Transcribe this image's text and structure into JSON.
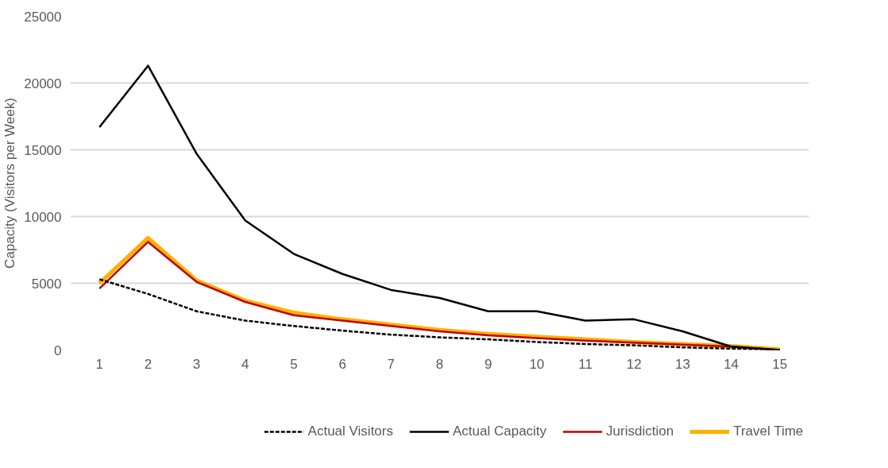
{
  "chart_data": {
    "type": "line",
    "ylabel": "Capacity (Visitors per Week)",
    "x": [
      1,
      2,
      3,
      4,
      5,
      6,
      7,
      8,
      9,
      10,
      11,
      12,
      13,
      14,
      15
    ],
    "xlim": [
      0.4,
      15.6
    ],
    "xticks": [
      1,
      2,
      3,
      4,
      5,
      6,
      7,
      8,
      9,
      10,
      11,
      12,
      13,
      14,
      15
    ],
    "ylim": [
      0,
      25000
    ],
    "yticks": [
      0,
      5000,
      10000,
      15000,
      20000,
      25000
    ],
    "grid": "y",
    "legend": "bottom",
    "series": [
      {
        "name": "Actual Visitors",
        "color": "#000000",
        "line_style": "dashed",
        "values": [
          5300,
          4200,
          2900,
          2200,
          1800,
          1450,
          1150,
          950,
          800,
          600,
          450,
          350,
          200,
          100,
          0
        ]
      },
      {
        "name": "Actual Capacity",
        "color": "#000000",
        "values": [
          16700,
          21300,
          14700,
          9700,
          7200,
          5700,
          4500,
          3900,
          2900,
          2900,
          2200,
          2300,
          1400,
          250,
          0
        ]
      },
      {
        "name": "Jurisdiction",
        "color": "#c00000",
        "values": [
          4600,
          8100,
          5100,
          3600,
          2600,
          2200,
          1800,
          1400,
          1100,
          900,
          700,
          550,
          400,
          250,
          0
        ]
      },
      {
        "name": "Travel Time",
        "color": "#ffb000",
        "values": [
          5000,
          8400,
          5200,
          3700,
          2800,
          2300,
          1900,
          1500,
          1200,
          1000,
          800,
          600,
          450,
          300,
          50
        ]
      }
    ]
  }
}
